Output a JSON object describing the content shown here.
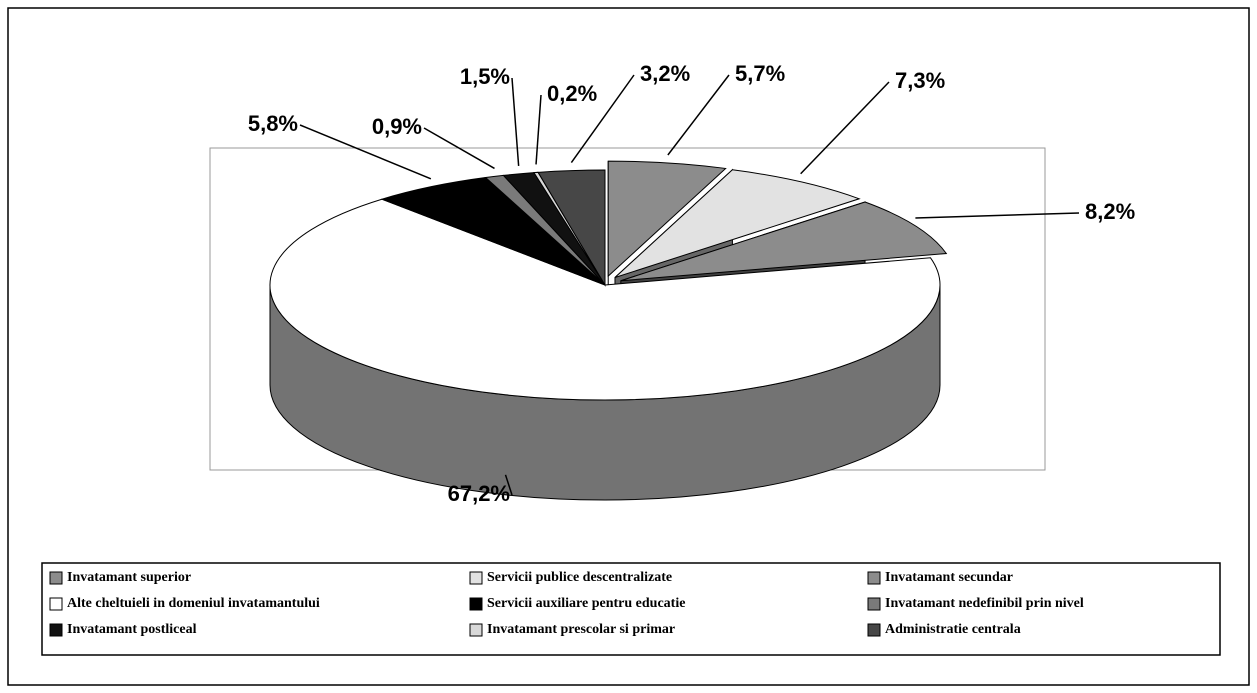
{
  "chart_data": {
    "type": "pie",
    "categories": [
      "Invatamant superior",
      "Servicii publice descentralizate",
      "Invatamant secundar",
      "Alte cheltuieli in domeniul invatamantului",
      "Servicii auxiliare pentru educatie",
      "Invatamant nedefinibil prin nivel",
      "Invatamant postliceal",
      "Invatamant prescolar si primar",
      "Administratie centrala"
    ],
    "values": [
      5.7,
      7.3,
      8.2,
      67.2,
      5.8,
      0.9,
      1.5,
      0.2,
      3.2
    ],
    "value_labels": [
      "5,7%",
      "7,3%",
      "8,2%",
      "67,2%",
      "5,8%",
      "0,9%",
      "1,5%",
      "0,2%",
      "3,2%"
    ],
    "colors": [
      "#8c8c8c",
      "#e2e2e2",
      "#8c8c8c",
      "#ffffff",
      "#000000",
      "#7a7a7a",
      "#111111",
      "#d8d8d8",
      "#474747"
    ]
  }
}
